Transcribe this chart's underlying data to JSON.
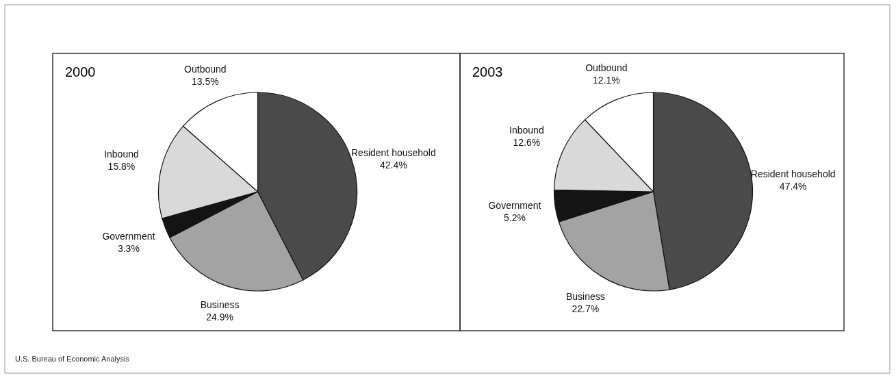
{
  "chart_data": [
    {
      "type": "pie",
      "title": "2000",
      "categories": [
        "Resident household",
        "Business",
        "Government",
        "Inbound",
        "Outbound"
      ],
      "values": [
        42.4,
        24.9,
        3.3,
        15.8,
        13.5
      ],
      "value_labels": [
        "42.4%",
        "24.9%",
        "3.3%",
        "15.8%",
        "13.5%"
      ],
      "colors": [
        "#4a4a4a",
        "#a3a3a3",
        "#141414",
        "#d9d9d9",
        "#ffffff"
      ],
      "annotations": [
        "U.S. Bureau of Economic Analysis"
      ]
    },
    {
      "type": "pie",
      "title": "2003",
      "categories": [
        "Resident household",
        "Business",
        "Government",
        "Inbound",
        "Outbound"
      ],
      "values": [
        47.4,
        22.7,
        5.2,
        12.6,
        12.1
      ],
      "value_labels": [
        "47.4%",
        "22.7%",
        "5.2%",
        "12.6%",
        "12.1%"
      ],
      "colors": [
        "#4a4a4a",
        "#a3a3a3",
        "#141414",
        "#d9d9d9",
        "#ffffff"
      ]
    }
  ]
}
